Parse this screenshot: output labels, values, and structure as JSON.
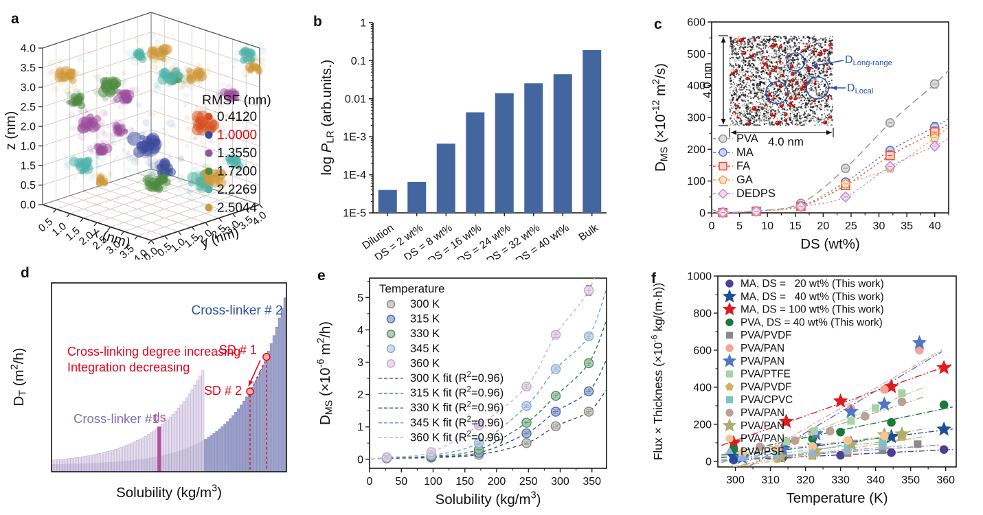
{
  "chart_data": [
    {
      "panel": "a",
      "panel_label": "a",
      "type": "scatter3d",
      "x_label": "x (nm)",
      "y_label": "y (nm)",
      "z_label": "z (nm)",
      "x_ticks": [
        "0.5",
        "1.0",
        "1.5",
        "2.0",
        "2.5",
        "3.0",
        "3.5",
        "4.0"
      ],
      "y_ticks": [
        "0.0",
        "0.5",
        "1.0",
        "1.5",
        "2.0",
        "2.5",
        "3.0",
        "3.5",
        "4.0"
      ],
      "z_ticks": [
        "4.0",
        "3.5",
        "3.0",
        "2.5",
        "2.0",
        "1.0",
        "1.5",
        "0.5",
        "0.0"
      ],
      "legend": {
        "title": "RMSF (nm)",
        "entries": [
          {
            "label": "0.4120",
            "color": "#d6511f",
            "label_color": "#111111"
          },
          {
            "label": "1.0000",
            "color": "#3c4a9e",
            "label_color": "#e8000b"
          },
          {
            "label": "1.3550",
            "color": "#9b4f9b",
            "label_color": "#111111"
          },
          {
            "label": "1.7200",
            "color": "#4c8b3e",
            "label_color": "#111111"
          },
          {
            "label": "2.2269",
            "color": "#4fb3a9",
            "label_color": "#111111"
          },
          {
            "label": "2.5044",
            "color": "#cf9a3c",
            "label_color": "#111111"
          }
        ]
      },
      "clusters": [
        {
          "color": "#d6511f",
          "x": 2.6,
          "y": 3.4,
          "z": 1.9,
          "s": 1.25
        },
        {
          "color": "#3c4a9e",
          "x": 1.9,
          "y": 1.9,
          "z": 1.55,
          "s": 1.5
        },
        {
          "color": "#3c4a9e",
          "x": 2.4,
          "y": 2.1,
          "z": 1.0,
          "s": 0.9
        },
        {
          "color": "#9b4f9b",
          "x": 0.9,
          "y": 0.8,
          "z": 2.1,
          "s": 1.1
        },
        {
          "color": "#9b4f9b",
          "x": 1.6,
          "y": 1.4,
          "z": 2.8,
          "s": 0.85
        },
        {
          "color": "#9b4f9b",
          "x": 3.3,
          "y": 3.6,
          "z": 2.7,
          "s": 0.7
        },
        {
          "color": "#9b4f9b",
          "x": 0.5,
          "y": 2.4,
          "z": 1.5,
          "s": 0.6
        },
        {
          "color": "#9b4f9b",
          "x": 1.1,
          "y": 1.1,
          "z": 1.4,
          "s": 0.7
        },
        {
          "color": "#4c8b3e",
          "x": 1.1,
          "y": 1.4,
          "z": 2.95,
          "s": 1.0
        },
        {
          "color": "#4c8b3e",
          "x": 0.7,
          "y": 0.5,
          "z": 2.7,
          "s": 0.8
        },
        {
          "color": "#4c8b3e",
          "x": 1.9,
          "y": 2.2,
          "z": 0.45,
          "s": 0.8
        },
        {
          "color": "#4c8b3e",
          "x": 3.7,
          "y": 1.2,
          "z": 3.8,
          "s": 0.55
        },
        {
          "color": "#4c8b3e",
          "x": 1.4,
          "y": 3.0,
          "z": 0.3,
          "s": 0.6
        },
        {
          "color": "#4fb3a9",
          "x": 2.5,
          "y": 2.2,
          "z": 3.35,
          "s": 0.95
        },
        {
          "color": "#4fb3a9",
          "x": 0.45,
          "y": 1.0,
          "z": 0.85,
          "s": 1.0
        },
        {
          "color": "#4fb3a9",
          "x": 2.7,
          "y": 3.1,
          "z": 0.5,
          "s": 1.15
        },
        {
          "color": "#4fb3a9",
          "x": 3.8,
          "y": 3.8,
          "z": 3.8,
          "s": 0.9
        },
        {
          "color": "#4fb3a9",
          "x": 3.6,
          "y": 3.5,
          "z": 1.1,
          "s": 0.7
        },
        {
          "color": "#4fb3a9",
          "x": 0.25,
          "y": 3.3,
          "z": 3.1,
          "s": 0.6
        },
        {
          "color": "#cf9a3c",
          "x": 0.55,
          "y": 0.35,
          "z": 3.35,
          "s": 1.0
        },
        {
          "color": "#cf9a3c",
          "x": 2.3,
          "y": 2.0,
          "z": 3.9,
          "s": 1.0
        },
        {
          "color": "#cf9a3c",
          "x": 3.15,
          "y": 2.5,
          "z": 3.45,
          "s": 0.85
        },
        {
          "color": "#cf9a3c",
          "x": 3.0,
          "y": 3.3,
          "z": 0.6,
          "s": 1.0
        },
        {
          "color": "#cf9a3c",
          "x": 3.9,
          "y": 3.9,
          "z": 3.5,
          "s": 0.65
        },
        {
          "color": "#cf9a3c",
          "x": 0.3,
          "y": 1.9,
          "z": 0.25,
          "s": 0.5
        }
      ]
    },
    {
      "panel": "b",
      "panel_label": "b",
      "type": "bar",
      "ylabel": "log *P*_LR_ (arb.units.)",
      "categories": [
        "Dilution",
        "DS = 2 wt%",
        "DS = 8 wt%",
        "DS = 16 wt%",
        "DS = 24 wt%",
        "DS = 32 wt%",
        "DS = 40 wt%",
        "Bulk"
      ],
      "values": [
        4e-05,
        6.5e-05,
        0.00066,
        0.0044,
        0.014,
        0.0255,
        0.044,
        0.19
      ],
      "bar_color": "#44669f",
      "ylim": [
        1e-05,
        1
      ],
      "ytick_labels": [
        "1",
        "0.1",
        "0.01",
        "1E-3",
        "1E-4",
        "1E-5"
      ],
      "ytick_values": [
        1,
        0.1,
        0.01,
        0.001,
        0.0001,
        1e-05
      ]
    },
    {
      "panel": "c",
      "panel_label": "c",
      "type": "scatter",
      "xlabel": "DS (wt%)",
      "ylabel": "D_MS_ (×10^-12^ m^2^/s)",
      "xlim": [
        0,
        42.5
      ],
      "ylim": [
        0,
        600
      ],
      "xticks": [
        0,
        5,
        10,
        15,
        20,
        25,
        30,
        35,
        40
      ],
      "yticks": [
        0,
        100,
        200,
        300,
        400,
        500,
        600
      ],
      "x": [
        2,
        8,
        16,
        24,
        32,
        40
      ],
      "series": [
        {
          "name": "PVA",
          "marker": "circle",
          "color": "#959595",
          "fill": "#dcdcdc",
          "values": [
            2,
            6,
            30,
            140,
            283,
            405
          ],
          "errs": [
            5,
            5,
            6,
            8,
            10,
            13
          ]
        },
        {
          "name": "MA",
          "marker": "circle",
          "color": "#5e72c4",
          "fill": "#ccd4f0",
          "values": [
            1,
            5,
            22,
            97,
            196,
            270
          ],
          "errs": [
            4,
            4,
            5,
            6,
            9,
            14
          ]
        },
        {
          "name": "FA",
          "marker": "square",
          "color": "#e4502f",
          "fill": "#f8d2c7",
          "values": [
            1,
            5,
            20,
            86,
            180,
            254
          ],
          "errs": [
            4,
            4,
            5,
            6,
            9,
            12
          ]
        },
        {
          "name": "GA",
          "marker": "pentagon",
          "color": "#f0a155",
          "fill": "#fce3c8",
          "values": [
            1,
            5,
            20,
            91,
            140,
            236
          ],
          "errs": [
            4,
            4,
            5,
            6,
            8,
            12
          ]
        },
        {
          "name": "DEDPS",
          "marker": "diamond",
          "color": "#c48fca",
          "fill": "#eedcf0",
          "values": [
            1,
            5,
            20,
            50,
            146,
            210
          ],
          "errs": [
            4,
            4,
            5,
            6,
            8,
            12
          ]
        }
      ],
      "inset": {
        "height_label": "4.0 nm",
        "width_label": "4.0 nm",
        "annotations": [
          {
            "text": "D_Long-range_"
          },
          {
            "text": "D_Local_"
          }
        ],
        "annotation_color": "#2456b4"
      }
    },
    {
      "panel": "d",
      "panel_label": "d",
      "type": "schematic",
      "xlabel": "Solubility (kg/m^3^)",
      "ylabel": "D_T_ (m^2^/h)",
      "cross_linker1_label": "Cross-linker #1",
      "cross_linker2_label": "Cross-linker # 2",
      "ds_label": "ds",
      "note_lines": [
        "Cross-linking degree increasing",
        "Integration decreasing"
      ],
      "sd1_label": "SD # 1",
      "sd2_label": "SD # 2",
      "colors": {
        "cl1_fill": "#ded5e9",
        "cl1_edge": "#baa9ce",
        "cl2_fill": "#9096c4",
        "cl2_edge": "#7b81b4",
        "ds": "#b5519b",
        "red": "#e8001d",
        "cl1_label": "#7f6fb0",
        "cl2_label": "#2b50a0"
      }
    },
    {
      "panel": "e",
      "panel_label": "e",
      "type": "scatter",
      "xlabel": "Solubility (kg/m^3^)",
      "ylabel": "D_MS_ (×10^-6^ m^2^/h)",
      "legend_title": "Temperature",
      "xlim": [
        0,
        373
      ],
      "ylim": [
        -0.28,
        5.6
      ],
      "xticks": [
        0,
        50,
        100,
        150,
        200,
        250,
        300,
        350
      ],
      "yticks": [
        0,
        1,
        2,
        3,
        4,
        5
      ],
      "x": [
        27,
        97,
        172,
        247,
        293,
        345
      ],
      "series": [
        {
          "name": "300 K",
          "fit_label": "300 K fit (R^2^=0.96)",
          "color": "#8c8c84",
          "fill": "#c6c6bf",
          "fit_color": "#3d4a5c",
          "values": [
            0.03,
            0.05,
            0.14,
            0.5,
            1.02,
            1.47
          ],
          "errs": [
            0.05,
            0.05,
            0.05,
            0.05,
            0.06,
            0.07
          ]
        },
        {
          "name": "315 K",
          "fit_label": "315 K fit (R^2^=0.96)",
          "color": "#4f6fae",
          "fill": "#9db1d4",
          "fit_color": "#2a4a86",
          "values": [
            0.03,
            0.07,
            0.2,
            0.8,
            1.47,
            2.1
          ],
          "errs": [
            0.05,
            0.05,
            0.05,
            0.05,
            0.06,
            0.07
          ]
        },
        {
          "name": "330 K",
          "fit_label": "330 K fit (R^2^=0.96)",
          "color": "#4f9360",
          "fill": "#a3c8aa",
          "fit_color": "#2f6b46",
          "values": [
            0.04,
            0.09,
            0.3,
            1.13,
            1.96,
            2.97
          ],
          "errs": [
            0.05,
            0.05,
            0.05,
            0.05,
            0.06,
            0.07
          ]
        },
        {
          "name": "345 K",
          "fit_label": "345 K fit (R^2^=0.96)",
          "color": "#86aed4",
          "fill": "#c2d5e9",
          "fit_color": "#6b93c4",
          "values": [
            0.05,
            0.12,
            0.5,
            1.65,
            2.79,
            3.8
          ],
          "errs": [
            0.05,
            0.05,
            0.05,
            0.05,
            0.06,
            0.08
          ]
        },
        {
          "name": "360 K",
          "fit_label": "360 K fit (R^2^=0.96)",
          "color": "#c7a8d0",
          "fill": "#e4d6e9",
          "fit_color": "#c9aed6",
          "values": [
            0.06,
            0.22,
            1.05,
            2.25,
            3.85,
            5.22
          ],
          "errs": [
            0.05,
            0.05,
            0.06,
            0.06,
            0.08,
            0.15
          ]
        }
      ]
    },
    {
      "panel": "f",
      "panel_label": "f",
      "type": "scatter",
      "xlabel": "Temperature (K)",
      "ylabel": "Flux × Thickness (×10^-6^ kg/(m·h))",
      "xlim": [
        295,
        363
      ],
      "ylim": [
        -30,
        1000
      ],
      "xticks": [
        300,
        310,
        320,
        330,
        340,
        350,
        360
      ],
      "yticks": [
        0,
        200,
        400,
        600,
        800,
        1000
      ],
      "series": [
        {
          "name": "MA, DS =   20 wt% (This work)",
          "marker": "circle",
          "color": "#4c3f97",
          "x": [
            299.5,
            313.5,
            330,
            344.5,
            359.5
          ],
          "y": [
            8,
            20,
            33,
            47,
            64
          ]
        },
        {
          "name": "MA, DS =   40 wt% (This work)",
          "marker": "star",
          "color": "#1b4f9e",
          "x": [
            299.5,
            313.5,
            322.5,
            333,
            344.5,
            359.5
          ],
          "y": [
            27,
            68,
            83,
            97,
            133,
            173
          ]
        },
        {
          "name": "MA, DS = 100 wt% (This work)",
          "marker": "star",
          "color": "#e01b1f",
          "x": [
            299.5,
            314.5,
            330,
            344.5,
            359.5
          ],
          "y": [
            100,
            215,
            325,
            403,
            505
          ]
        },
        {
          "name": "PVA, DS = 40 wt% (This work)",
          "marker": "circle",
          "color": "#1a7a3a",
          "x": [
            299.5,
            314.5,
            322,
            330,
            344.5,
            359.5
          ],
          "y": [
            65,
            107,
            122,
            158,
            210,
            305
          ]
        },
        {
          "name": "PVA/PVDF",
          "marker": "square",
          "color": "#8a8a8a",
          "x": [
            302,
            312,
            322,
            332,
            342,
            352
          ],
          "y": [
            24,
            20,
            30,
            45,
            60,
            93
          ]
        },
        {
          "name": "PVA/PAN",
          "marker": "circle",
          "color": "#f2a39c",
          "x": [
            302,
            312,
            322,
            333,
            342.5,
            352.5
          ],
          "y": [
            44,
            64,
            160,
            285,
            388,
            600
          ]
        },
        {
          "name": "PVA/PAN",
          "marker": "star",
          "color": "#4f77c6",
          "x": [
            302,
            313.5,
            323,
            333,
            342.5,
            352.5
          ],
          "y": [
            20,
            64,
            148,
            268,
            308,
            640
          ]
        },
        {
          "name": "PVA/PTFE",
          "marker": "square",
          "color": "#a9d3a5",
          "x": [
            314.5,
            322.5,
            333,
            340,
            347.5
          ],
          "y": [
            107,
            163,
            218,
            288,
            368
          ]
        },
        {
          "name": "PVA/PVDF",
          "marker": "pentagon",
          "color": "#d2b05e",
          "x": [
            312,
            322,
            332,
            342,
            347.5
          ],
          "y": [
            14,
            34,
            58,
            84,
            132
          ]
        },
        {
          "name": "PVA/CPVC",
          "marker": "square",
          "color": "#79c7c5",
          "x": [
            302,
            312,
            322,
            332,
            342
          ],
          "y": [
            24,
            40,
            60,
            84,
            108
          ]
        },
        {
          "name": "PVA/PAN",
          "marker": "circle",
          "color": "#bba098",
          "x": [
            307,
            317,
            327,
            337,
            347.5
          ],
          "y": [
            78,
            112,
            163,
            243,
            322
          ]
        },
        {
          "name": "PVA/PAN",
          "marker": "star",
          "color": "#adad6e",
          "x": [
            313,
            323,
            333,
            342.5,
            347.5
          ],
          "y": [
            24,
            58,
            93,
            143,
            147
          ]
        },
        {
          "name": "PVA/PAN",
          "marker": "circle",
          "color": "#f6c493",
          "x": [
            302,
            312,
            322,
            332,
            342.5
          ],
          "y": [
            46,
            66,
            80,
            112,
            138
          ]
        },
        {
          "name": "PVA/PSF",
          "marker": "triangle",
          "color": "#90b2dc",
          "x": [
            302,
            312,
            322,
            332,
            342
          ],
          "y": [
            18,
            28,
            43,
            58,
            78
          ]
        }
      ]
    }
  ]
}
